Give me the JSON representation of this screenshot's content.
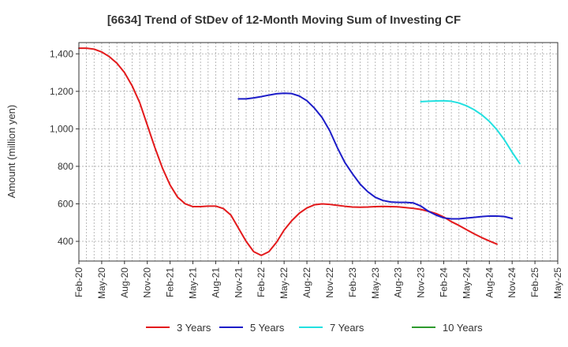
{
  "chart_data": {
    "type": "line",
    "title": "[6634]  Trend of StDev of 12-Month Moving Sum of Investing CF",
    "ylabel": "Amount (million yen)",
    "xlabel": "",
    "ylim": [
      295,
      1460
    ],
    "yticks": [
      400,
      600,
      800,
      1000,
      1200,
      1400
    ],
    "ytick_labels": [
      "400",
      "600",
      "800",
      "1,000",
      "1,200",
      "1,400"
    ],
    "x_start": "Feb-20",
    "x_end": "May-25",
    "xtick_labels": [
      "Feb-20",
      "May-20",
      "Aug-20",
      "Nov-20",
      "Feb-21",
      "May-21",
      "Aug-21",
      "Nov-21",
      "Feb-22",
      "May-22",
      "Aug-22",
      "Nov-22",
      "Feb-23",
      "May-23",
      "Aug-23",
      "Nov-23",
      "Feb-24",
      "May-24",
      "Aug-24",
      "Nov-24",
      "Feb-25",
      "May-25"
    ],
    "grid": true,
    "legend_position": "bottom",
    "series": [
      {
        "name": "3 Years",
        "color": "#e31a1c",
        "start": "Feb-20",
        "values": [
          1430,
          1430,
          1425,
          1410,
          1385,
          1350,
          1300,
          1230,
          1140,
          1020,
          900,
          790,
          700,
          635,
          600,
          585,
          585,
          588,
          588,
          575,
          540,
          470,
          400,
          345,
          325,
          345,
          395,
          460,
          510,
          550,
          578,
          595,
          600,
          597,
          592,
          587,
          583,
          582,
          583,
          585,
          586,
          585,
          584,
          580,
          576,
          570,
          560,
          548,
          530,
          505,
          485,
          462,
          440,
          420,
          402,
          385
        ]
      },
      {
        "name": "5 Years",
        "color": "#1c1cc8",
        "start": "Nov-21",
        "values": [
          1160,
          1160,
          1165,
          1172,
          1180,
          1187,
          1190,
          1188,
          1175,
          1150,
          1110,
          1060,
          990,
          900,
          820,
          760,
          705,
          665,
          635,
          618,
          610,
          608,
          608,
          605,
          588,
          560,
          540,
          525,
          520,
          520,
          524,
          528,
          532,
          535,
          535,
          532,
          522
        ]
      },
      {
        "name": "7 Years",
        "color": "#22e0e0",
        "start": "Nov-23",
        "values": [
          1145,
          1147,
          1149,
          1150,
          1147,
          1138,
          1123,
          1102,
          1075,
          1040,
          995,
          940,
          875,
          815
        ]
      },
      {
        "name": "10 Years",
        "color": "#2e9a2e",
        "start": "Feb-20",
        "values": []
      }
    ]
  }
}
